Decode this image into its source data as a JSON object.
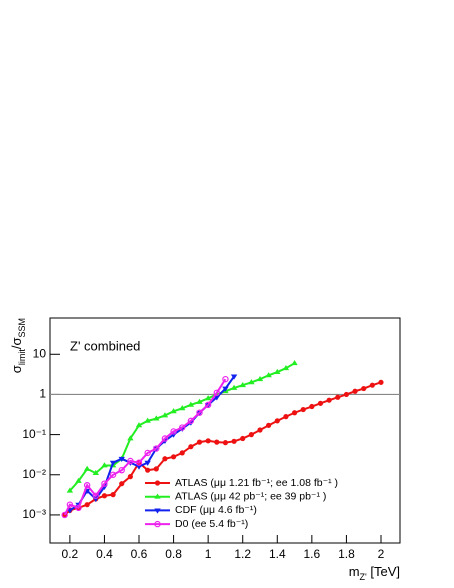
{
  "chart_data": {
    "type": "line",
    "annotation": "Z' combined",
    "ylabel_parts": [
      "σ",
      "limit",
      "/σ",
      "SSM"
    ],
    "xlabel_parts": [
      "m",
      "Z'",
      " [TeV]"
    ],
    "xlim": [
      0.085,
      2.11
    ],
    "xticks": [
      0.2,
      0.4,
      0.6,
      0.8,
      1,
      1.2,
      1.4,
      1.6,
      1.8,
      2
    ],
    "ylim": [
      0.0002,
      80
    ],
    "log_y": true,
    "yticks": [
      {
        "value": 0.001,
        "label": "10⁻³"
      },
      {
        "value": 0.01,
        "label": "10⁻²"
      },
      {
        "value": 0.1,
        "label": "10⁻¹"
      },
      1,
      10
    ],
    "reference_line": 1,
    "legend": "lower right",
    "series": [
      {
        "name": "ATLAS (μμ 1.21 fb⁻¹; ee 1.08 fb⁻¹ )",
        "color": "#ee1111",
        "marker": "circle",
        "x": [
          0.17,
          0.2,
          0.25,
          0.3,
          0.35,
          0.4,
          0.45,
          0.5,
          0.55,
          0.6,
          0.65,
          0.7,
          0.75,
          0.8,
          0.85,
          0.9,
          0.95,
          1.0,
          1.05,
          1.1,
          1.15,
          1.2,
          1.25,
          1.3,
          1.35,
          1.4,
          1.45,
          1.5,
          1.55,
          1.6,
          1.65,
          1.7,
          1.75,
          1.8,
          1.85,
          1.9,
          1.95,
          2.0
        ],
        "values": [
          0.001,
          0.0013,
          0.0015,
          0.0018,
          0.0025,
          0.003,
          0.0032,
          0.006,
          0.009,
          0.02,
          0.013,
          0.014,
          0.025,
          0.028,
          0.035,
          0.05,
          0.065,
          0.07,
          0.065,
          0.063,
          0.068,
          0.08,
          0.1,
          0.13,
          0.17,
          0.22,
          0.28,
          0.35,
          0.42,
          0.5,
          0.6,
          0.72,
          0.85,
          1.0,
          1.2,
          1.4,
          1.7,
          2.0
        ]
      },
      {
        "name": "ATLAS (μμ 42 pb⁻¹; ee 39 pb⁻¹ )",
        "color": "#22ee22",
        "marker": "triangle-up",
        "x": [
          0.2,
          0.25,
          0.3,
          0.35,
          0.4,
          0.45,
          0.5,
          0.55,
          0.6,
          0.65,
          0.7,
          0.75,
          0.8,
          0.85,
          0.9,
          0.95,
          1.0,
          1.05,
          1.1,
          1.15,
          1.2,
          1.25,
          1.3,
          1.35,
          1.4,
          1.45,
          1.5
        ],
        "values": [
          0.004,
          0.007,
          0.014,
          0.011,
          0.017,
          0.017,
          0.025,
          0.08,
          0.17,
          0.22,
          0.25,
          0.3,
          0.38,
          0.45,
          0.55,
          0.65,
          0.8,
          1.0,
          1.2,
          1.45,
          1.7,
          2.0,
          2.4,
          3.0,
          3.6,
          4.5,
          6.0
        ]
      },
      {
        "name": "CDF (μμ 4.6 fb⁻¹)",
        "color": "#1122ee",
        "marker": "triangle-down",
        "x": [
          0.2,
          0.25,
          0.3,
          0.35,
          0.4,
          0.45,
          0.5,
          0.55,
          0.6,
          0.65,
          0.7,
          0.75,
          0.8,
          0.85,
          0.9,
          0.95,
          1.0,
          1.05,
          1.1,
          1.15
        ],
        "values": [
          0.0013,
          0.0018,
          0.004,
          0.0025,
          0.005,
          0.02,
          0.025,
          0.02,
          0.016,
          0.02,
          0.045,
          0.07,
          0.1,
          0.14,
          0.2,
          0.35,
          0.55,
          0.85,
          1.4,
          2.8
        ]
      },
      {
        "name": "D0 (ee 5.4 fb⁻¹)",
        "color": "#ee22ee",
        "marker": "open-circle",
        "x": [
          0.17,
          0.2,
          0.25,
          0.3,
          0.35,
          0.4,
          0.45,
          0.5,
          0.55,
          0.6,
          0.65,
          0.7,
          0.75,
          0.8,
          0.85,
          0.9,
          0.95,
          1.0,
          1.05,
          1.1
        ],
        "values": [
          0.001,
          0.0018,
          0.0015,
          0.0055,
          0.003,
          0.006,
          0.01,
          0.013,
          0.022,
          0.02,
          0.035,
          0.045,
          0.08,
          0.12,
          0.15,
          0.22,
          0.35,
          0.55,
          1.1,
          2.4
        ]
      }
    ]
  }
}
